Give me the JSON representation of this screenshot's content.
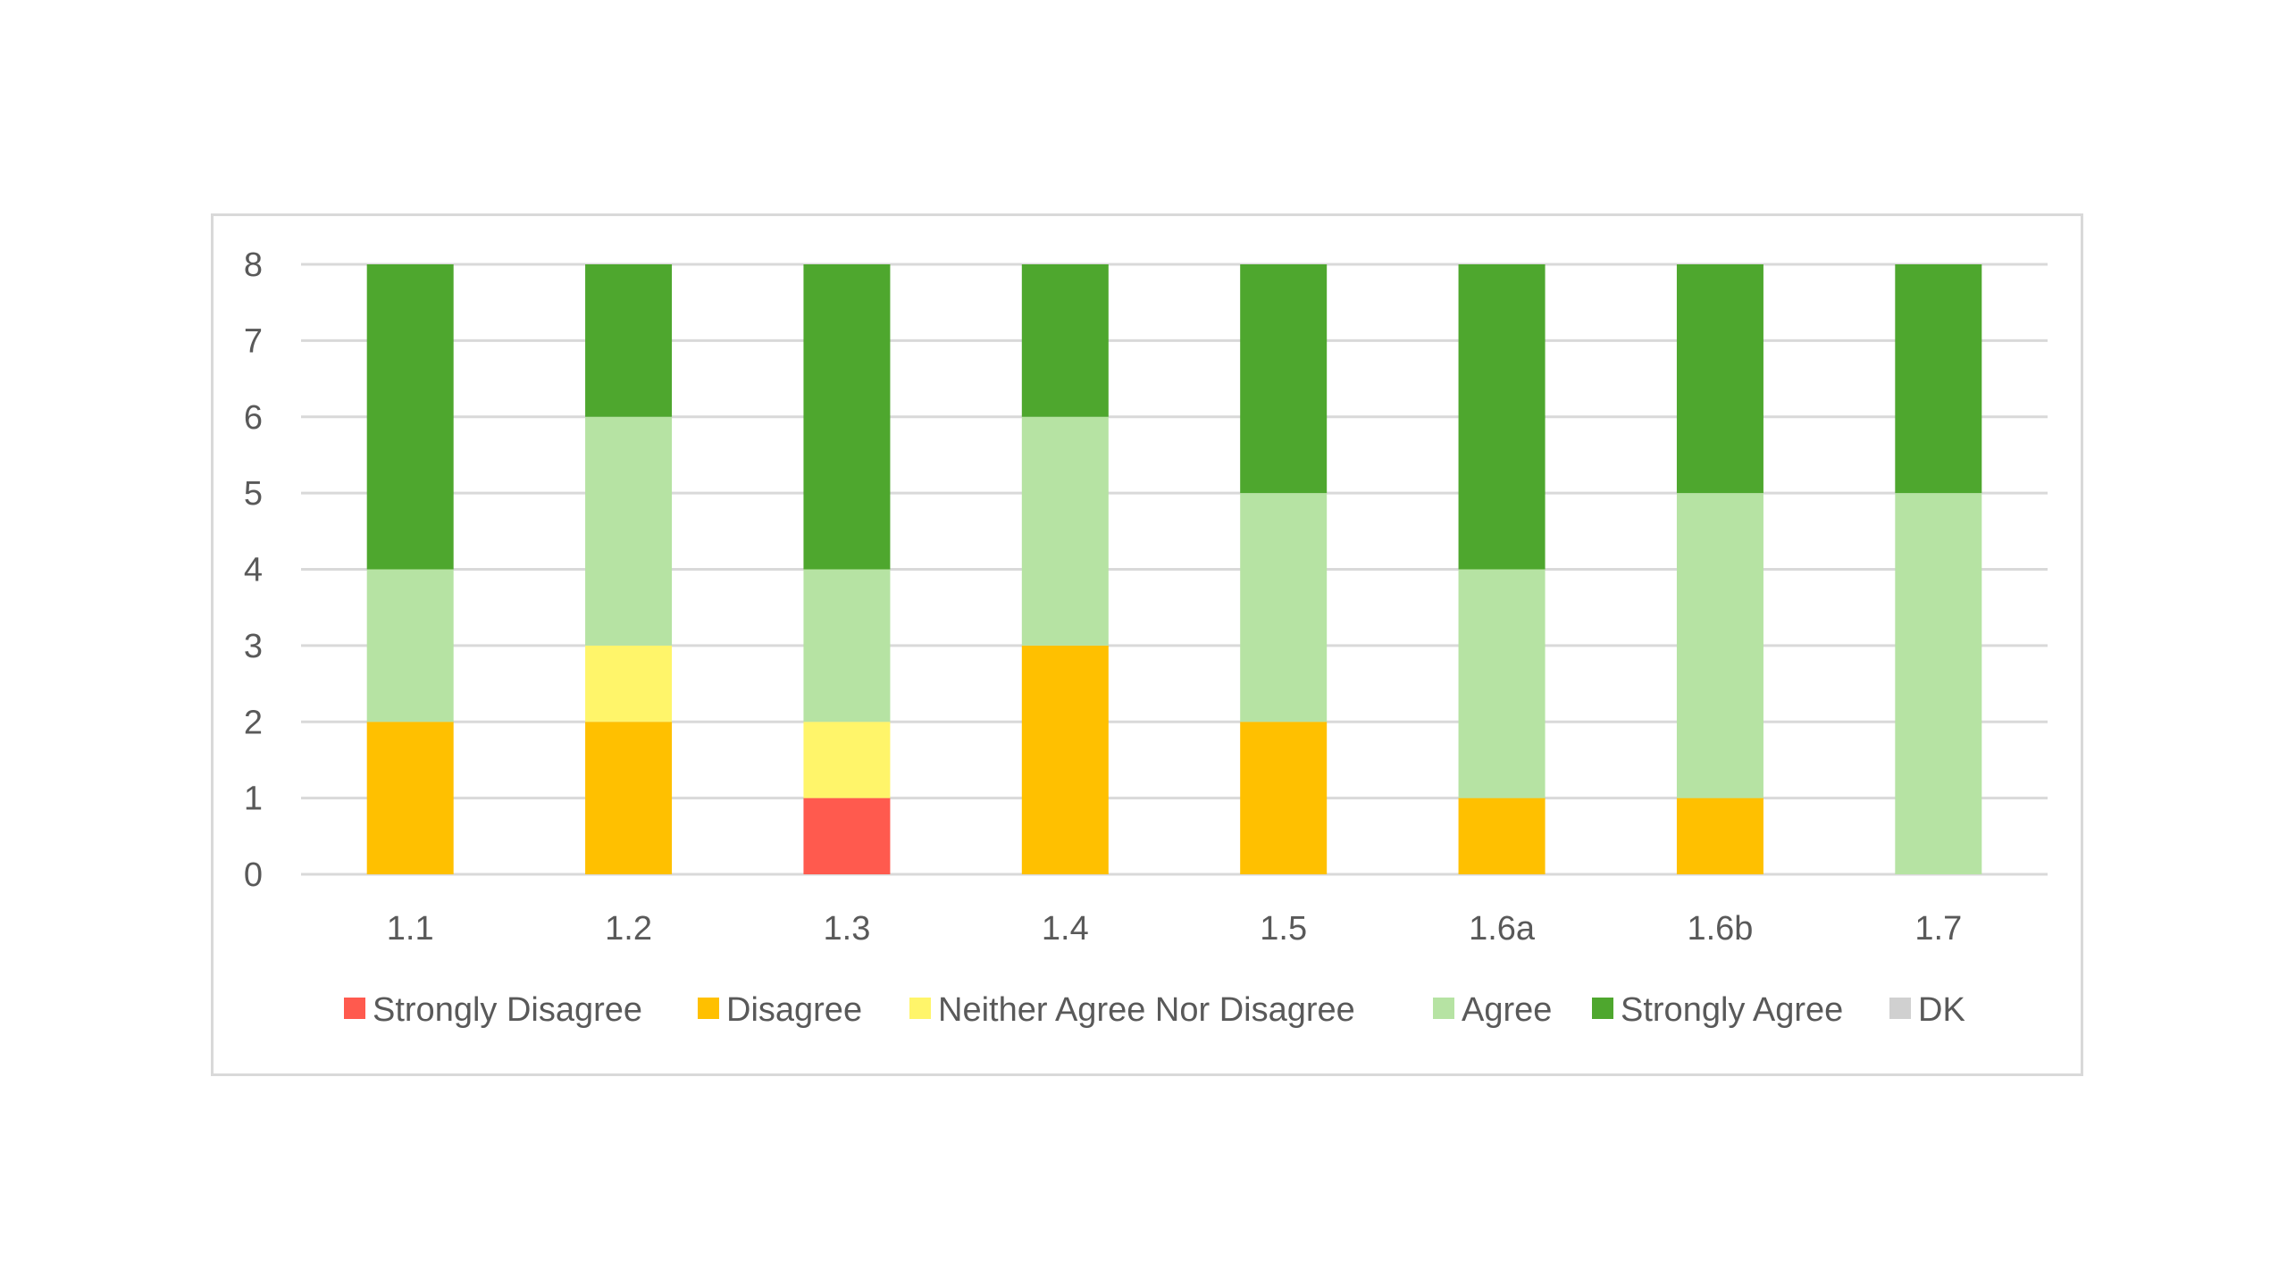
{
  "chart_data": {
    "type": "bar",
    "stacked": true,
    "categories": [
      "1.1",
      "1.2",
      "1.3",
      "1.4",
      "1.5",
      "1.6a",
      "1.6b",
      "1.7"
    ],
    "series": [
      {
        "name": "Strongly Disagree",
        "color": "#ff5a4e",
        "values": [
          0,
          0,
          1,
          0,
          0,
          0,
          0,
          0
        ]
      },
      {
        "name": "Disagree",
        "color": "#ffc000",
        "values": [
          2,
          2,
          0,
          3,
          2,
          1,
          1,
          0
        ]
      },
      {
        "name": "Neither Agree Nor Disagree",
        "color": "#fff56a",
        "values": [
          0,
          1,
          1,
          0,
          0,
          0,
          0,
          0
        ]
      },
      {
        "name": "Agree",
        "color": "#b6e3a3",
        "values": [
          2,
          3,
          2,
          3,
          3,
          3,
          4,
          5
        ]
      },
      {
        "name": "Strongly Agree",
        "color": "#4ea72e",
        "values": [
          4,
          2,
          4,
          2,
          3,
          4,
          3,
          3
        ]
      },
      {
        "name": "DK",
        "color": "#d0d0d0",
        "values": [
          0,
          0,
          0,
          0,
          0,
          0,
          0,
          0
        ]
      }
    ],
    "ylim": [
      0,
      8
    ],
    "yticks": [
      "0",
      "1",
      "2",
      "3",
      "4",
      "5",
      "6",
      "7",
      "8"
    ],
    "grid": true,
    "legend_position": "bottom",
    "gridline_color": "#d9d9d9"
  }
}
